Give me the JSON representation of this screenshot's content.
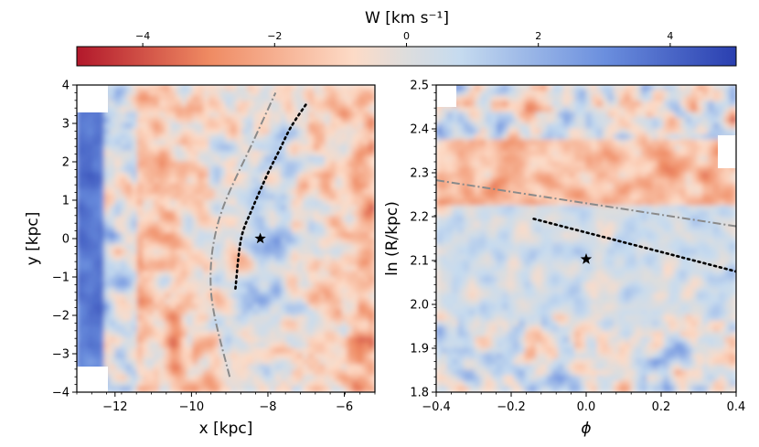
{
  "colorbar": {
    "label": "W [km s⁻¹]",
    "range": [
      -5,
      5
    ],
    "ticks": [
      -4,
      -2,
      0,
      2,
      4
    ],
    "tick_labels": [
      "−4",
      "−2",
      "0",
      "2",
      "4"
    ],
    "colors": [
      "#b2182b",
      "#ef8a62",
      "#fddbc7",
      "#dddddd",
      "#c6dbef",
      "#6b8fde",
      "#2a3fb0"
    ]
  },
  "chart_data": [
    {
      "type": "heatmap",
      "title": "",
      "xlabel": "x [kpc]",
      "ylabel": "y [kpc]",
      "xlim": [
        -13,
        -5.2
      ],
      "ylim": [
        -4,
        4
      ],
      "xticks": [
        -12,
        -10,
        -8,
        -6
      ],
      "xtick_labels": [
        "−12",
        "−10",
        "−8",
        "−6"
      ],
      "yticks": [
        -4,
        -3,
        -2,
        -1,
        0,
        1,
        2,
        3,
        4
      ],
      "ytick_labels": [
        "−4",
        "−3",
        "−2",
        "−1",
        "0",
        "1",
        "2",
        "3",
        "4"
      ],
      "sun_marker": {
        "x": -8.2,
        "y": 0
      },
      "dashdot_curve": {
        "x": [
          -9.0,
          -9.4,
          -9.5,
          -9.4,
          -9.1,
          -8.4,
          -7.8
        ],
        "y": [
          -3.6,
          -2.0,
          -1.0,
          0.0,
          1.0,
          2.5,
          3.8
        ]
      },
      "dotted_curve": {
        "x": [
          -8.85,
          -8.7,
          -8.4,
          -8.0,
          -7.7,
          -7.4,
          -7.0
        ],
        "y": [
          -1.3,
          0.0,
          0.8,
          1.7,
          2.3,
          2.9,
          3.5
        ]
      }
    },
    {
      "type": "heatmap",
      "title": "",
      "xlabel": "ϕ",
      "ylabel": "ln (R/kpc)",
      "xlim": [
        -0.4,
        0.4
      ],
      "ylim": [
        1.8,
        2.5
      ],
      "xticks": [
        -0.4,
        -0.2,
        0.0,
        0.2,
        0.4
      ],
      "xtick_labels": [
        "−0.4",
        "−0.2",
        "0.0",
        "0.2",
        "0.4"
      ],
      "yticks": [
        1.8,
        1.9,
        2.0,
        2.1,
        2.2,
        2.3,
        2.4,
        2.5
      ],
      "ytick_labels": [
        "1.8",
        "1.9",
        "2.0",
        "2.1",
        "2.2",
        "2.3",
        "2.4",
        "2.5"
      ],
      "sun_marker": {
        "x": 0.0,
        "y": 2.103
      },
      "dashdot_curve": {
        "x": [
          -0.4,
          0.4
        ],
        "y": [
          2.283,
          2.178
        ]
      },
      "dotted_curve": {
        "x": [
          -0.14,
          0.4
        ],
        "y": [
          2.195,
          2.075
        ]
      }
    }
  ]
}
